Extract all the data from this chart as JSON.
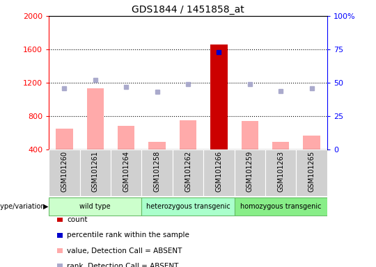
{
  "title": "GDS1844 / 1451858_at",
  "samples": [
    "GSM101260",
    "GSM101261",
    "GSM101264",
    "GSM101258",
    "GSM101262",
    "GSM101266",
    "GSM101259",
    "GSM101263",
    "GSM101265"
  ],
  "group_info": [
    {
      "name": "wild type",
      "start": 0,
      "end": 2,
      "color": "#ccffcc"
    },
    {
      "name": "heterozygous transgenic",
      "start": 3,
      "end": 5,
      "color": "#aaffcc"
    },
    {
      "name": "homozygous transgenic",
      "start": 6,
      "end": 8,
      "color": "#88ee88"
    }
  ],
  "count_values": [
    650,
    1130,
    680,
    490,
    750,
    1660,
    740,
    490,
    570
  ],
  "count_absent": [
    true,
    true,
    true,
    true,
    true,
    false,
    true,
    true,
    true
  ],
  "percentile_rank": [
    46,
    52,
    47,
    43,
    49,
    73,
    49,
    44,
    46
  ],
  "percentile_absent": [
    true,
    true,
    true,
    true,
    true,
    false,
    true,
    true,
    true
  ],
  "ylim_left": [
    400,
    2000
  ],
  "ylim_right": [
    0,
    100
  ],
  "yticks_left": [
    400,
    800,
    1200,
    1600,
    2000
  ],
  "yticks_right": [
    0,
    25,
    50,
    75,
    100
  ],
  "grid_values": [
    800,
    1200,
    1600
  ],
  "bar_color_absent": "#ffaaaa",
  "bar_color_present": "#cc0000",
  "dot_color_absent": "#aaaacc",
  "dot_color_present": "#0000cc",
  "bar_width": 0.55,
  "legend_items": [
    {
      "color": "#cc0000",
      "label": "count"
    },
    {
      "color": "#0000cc",
      "label": "percentile rank within the sample"
    },
    {
      "color": "#ffaaaa",
      "label": "value, Detection Call = ABSENT"
    },
    {
      "color": "#aaaacc",
      "label": "rank, Detection Call = ABSENT"
    }
  ]
}
